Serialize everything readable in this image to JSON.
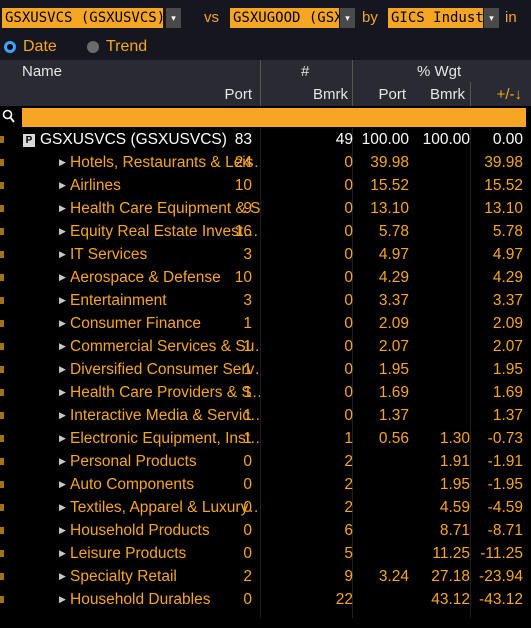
{
  "toolbar": {
    "portfolio": "GSXUSVCS (GSXUSVCS)",
    "vs": "vs",
    "benchmark": "GSXUGOOD (GSX",
    "by": "by",
    "grouping": "GICS Industri",
    "in": "in",
    "dropdown_glyph": "▾"
  },
  "view_mode": {
    "options": [
      "Date",
      "Trend"
    ],
    "selected": "Date"
  },
  "columns": {
    "name": "Name",
    "count_group": "#",
    "weight_group": "% Wgt",
    "port": "Port",
    "bmrk": "Bmrk",
    "wport": "Port",
    "wbmrk": "Bmrk",
    "diff": "+/-↓"
  },
  "search": {
    "icon": "search-icon",
    "value": ""
  },
  "colors": {
    "accent": "#f6a623",
    "selected_radio": "#3ba5ff"
  },
  "total_row": {
    "badge": "P",
    "name": "GSXUSVCS (GSXUSVCS)",
    "port": "83",
    "bmrk": "49",
    "wport": "100.00",
    "wbmrk": "100.00",
    "diff": "0.00"
  },
  "rows": [
    {
      "name": "Hotels, Restaurants & Leis…",
      "port": "24",
      "bmrk": "0",
      "wport": "39.98",
      "wbmrk": "",
      "diff": "39.98"
    },
    {
      "name": "Airlines",
      "port": "10",
      "bmrk": "0",
      "wport": "15.52",
      "wbmrk": "",
      "diff": "15.52"
    },
    {
      "name": "Health Care Equipment & S…",
      "port": "9",
      "bmrk": "0",
      "wport": "13.10",
      "wbmrk": "",
      "diff": "13.10"
    },
    {
      "name": "Equity Real Estate Invest…",
      "port": "16",
      "bmrk": "0",
      "wport": "5.78",
      "wbmrk": "",
      "diff": "5.78"
    },
    {
      "name": "IT Services",
      "port": "3",
      "bmrk": "0",
      "wport": "4.97",
      "wbmrk": "",
      "diff": "4.97"
    },
    {
      "name": "Aerospace & Defense",
      "port": "10",
      "bmrk": "0",
      "wport": "4.29",
      "wbmrk": "",
      "diff": "4.29"
    },
    {
      "name": "Entertainment",
      "port": "3",
      "bmrk": "0",
      "wport": "3.37",
      "wbmrk": "",
      "diff": "3.37"
    },
    {
      "name": "Consumer Finance",
      "port": "1",
      "bmrk": "0",
      "wport": "2.09",
      "wbmrk": "",
      "diff": "2.09"
    },
    {
      "name": "Commercial Services & Su…",
      "port": "1",
      "bmrk": "0",
      "wport": "2.07",
      "wbmrk": "",
      "diff": "2.07"
    },
    {
      "name": "Diversified Consumer Serv…",
      "port": "1",
      "bmrk": "0",
      "wport": "1.95",
      "wbmrk": "",
      "diff": "1.95"
    },
    {
      "name": "Health Care Providers & S…",
      "port": "1",
      "bmrk": "0",
      "wport": "1.69",
      "wbmrk": "",
      "diff": "1.69"
    },
    {
      "name": "Interactive Media & Servic…",
      "port": "1",
      "bmrk": "0",
      "wport": "1.37",
      "wbmrk": "",
      "diff": "1.37"
    },
    {
      "name": "Electronic Equipment, Inst…",
      "port": "1",
      "bmrk": "1",
      "wport": "0.56",
      "wbmrk": "1.30",
      "diff": "-0.73"
    },
    {
      "name": "Personal Products",
      "port": "0",
      "bmrk": "2",
      "wport": "",
      "wbmrk": "1.91",
      "diff": "-1.91"
    },
    {
      "name": "Auto Components",
      "port": "0",
      "bmrk": "2",
      "wport": "",
      "wbmrk": "1.95",
      "diff": "-1.95"
    },
    {
      "name": "Textiles, Apparel & Luxury…",
      "port": "0",
      "bmrk": "2",
      "wport": "",
      "wbmrk": "4.59",
      "diff": "-4.59"
    },
    {
      "name": "Household Products",
      "port": "0",
      "bmrk": "6",
      "wport": "",
      "wbmrk": "8.71",
      "diff": "-8.71"
    },
    {
      "name": "Leisure Products",
      "port": "0",
      "bmrk": "5",
      "wport": "",
      "wbmrk": "11.25",
      "diff": "-11.25"
    },
    {
      "name": "Specialty Retail",
      "port": "2",
      "bmrk": "9",
      "wport": "3.24",
      "wbmrk": "27.18",
      "diff": "-23.94"
    },
    {
      "name": "Household Durables",
      "port": "0",
      "bmrk": "22",
      "wport": "",
      "wbmrk": "43.12",
      "diff": "-43.12"
    }
  ]
}
